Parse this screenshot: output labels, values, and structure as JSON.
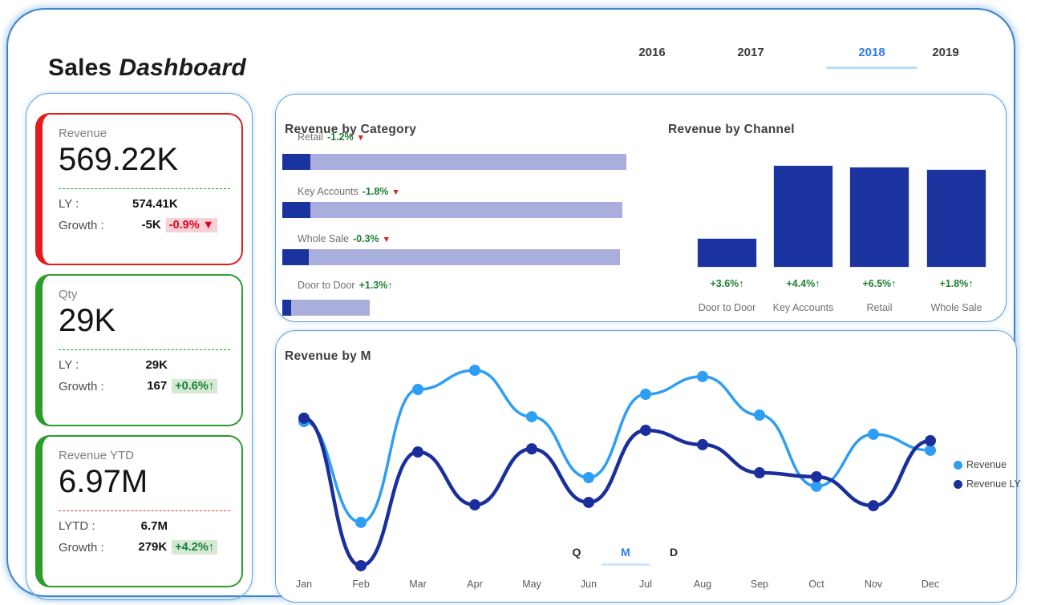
{
  "page": {
    "title_sales": "Sales",
    "title_dashboard": "Dashboard"
  },
  "tabs": {
    "items": [
      "2016",
      "2017",
      "2018",
      "2019"
    ],
    "active": "2018"
  },
  "kpi_cards": [
    {
      "label": "Revenue",
      "value": "569.22K",
      "accent": "red",
      "divider": "green",
      "rows": [
        {
          "label": "LY :",
          "value": "574.41K"
        },
        {
          "label": "Growth :",
          "value": "-5K",
          "badge": "-0.9% ▼",
          "badge_type": "negative"
        }
      ]
    },
    {
      "label": "Qty",
      "value": "29K",
      "accent": "green",
      "divider": "green",
      "rows": [
        {
          "label": "LY :",
          "value": "29K"
        },
        {
          "label": "Growth :",
          "value": "167",
          "badge": "+0.6%↑",
          "badge_type": "positive"
        }
      ]
    },
    {
      "label": "Revenue YTD",
      "value": "6.97M",
      "accent": "green",
      "divider": "red",
      "rows": [
        {
          "label": "LYTD :",
          "value": "6.7M"
        },
        {
          "label": "Growth :",
          "value": "279K",
          "badge": "+4.2%↑",
          "badge_type": "positive"
        }
      ]
    }
  ],
  "chart_data": [
    {
      "type": "bar",
      "orientation": "horizontal",
      "title": "Revenue by Category",
      "categories": [
        "Retail",
        "Key Accounts",
        "Whole Sale",
        "Door to Door"
      ],
      "values": [
        100,
        98.8,
        98.1,
        25.4
      ],
      "highlight_values": [
        8.2,
        8.2,
        7.7,
        2.6
      ],
      "growth": [
        {
          "pct": "-1.2%",
          "arrow": "▼",
          "direction": "down"
        },
        {
          "pct": "-1.8%",
          "arrow": "▼",
          "direction": "down"
        },
        {
          "pct": "-0.3%",
          "arrow": "▼",
          "direction": "down"
        },
        {
          "pct": "+1.3%",
          "arrow": "↑",
          "direction": "up"
        }
      ],
      "bar_color": "#1b339e",
      "track_color": "#a9aedd",
      "grid": false,
      "legend_position": "none"
    },
    {
      "type": "bar",
      "orientation": "vertical",
      "title": "Revenue by Channel",
      "categories": [
        "Door to Door",
        "Key Accounts",
        "Retail",
        "Whole Sale"
      ],
      "values": [
        27.8,
        100,
        98.4,
        96.0
      ],
      "growth": [
        "+3.6%↑",
        "+4.4%↑",
        "+6.5%↑",
        "+1.8%↑"
      ],
      "bar_color": "#1b339e",
      "grid": false,
      "legend_position": "none"
    },
    {
      "type": "line",
      "title": "Revenue by M",
      "x": [
        "Jan",
        "Feb",
        "Mar",
        "Apr",
        "May",
        "Jun",
        "Jul",
        "Aug",
        "Sep",
        "Oct",
        "Nov",
        "Dec"
      ],
      "series": [
        {
          "name": "Revenue",
          "color": "#2e9ef5",
          "values": [
            71.9,
            23.5,
            87.3,
            96.5,
            74.2,
            45.0,
            85.0,
            93.5,
            75.0,
            40.8,
            65.8,
            58.1
          ]
        },
        {
          "name": "Revenue LY",
          "color": "#1a2f9c",
          "values": [
            73.5,
            2.7,
            57.3,
            31.9,
            58.8,
            33.1,
            67.7,
            60.8,
            47.3,
            45.4,
            31.5,
            62.7
          ]
        }
      ],
      "ylim": [
        0,
        100
      ],
      "grid": false,
      "legend_position": "right",
      "smooth": true,
      "toggles": [
        "Q",
        "M",
        "D"
      ],
      "active_toggle": "M"
    }
  ],
  "colors": {
    "frame_blue": "#3e85c7",
    "panel_border": "#62a2da",
    "accent_red": "#e31b1c",
    "accent_green": "#2a9d2a",
    "badge_negative_bg": "#f8d0d6",
    "badge_negative_text": "#e2001f",
    "badge_positive_bg": "#d6e9d2",
    "badge_positive_text": "#15803d",
    "growth_green": "#1e7e34",
    "arrow_red": "#e02020",
    "bar_blue": "#1b339e",
    "bar_lavender": "#a9aedd",
    "line_revenue": "#2e9ef5",
    "line_revenue_ly": "#1a2f9c",
    "tab_active": "#2b7de9",
    "tab_underline": "#bedbf8"
  }
}
